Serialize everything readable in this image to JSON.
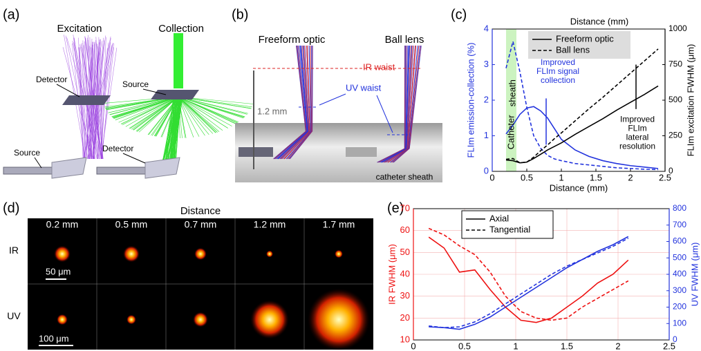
{
  "panel_labels": [
    "(a)",
    "(b)",
    "(c)",
    "(d)",
    "(e)"
  ],
  "panel_a": {
    "titles": [
      "Excitation",
      "Collection"
    ],
    "labels": [
      "Detector",
      "Source",
      "Source",
      "Detector"
    ]
  },
  "panel_b": {
    "titles": [
      "Freeform optic",
      "Ball lens"
    ],
    "labels": [
      "IR waist",
      "UV waist",
      "1.2 mm",
      "catheter sheath"
    ]
  },
  "panel_d": {
    "title": "Distance",
    "columns": [
      "0.2 mm",
      "0.5 mm",
      "0.7 mm",
      "1.2 mm",
      "1.7 mm"
    ],
    "rows": [
      "IR",
      "UV"
    ],
    "scale_bars": [
      "50 μm",
      "100 μm"
    ]
  },
  "chart_data": [
    {
      "type": "line",
      "top_label": "Distance (mm)",
      "xlabel": "Distance (mm)",
      "ylabel": "FLIm emission-collection (%)",
      "y2label": "FLIm excitation FWHM (μm)",
      "ycolor": "#2233dd",
      "y2color": "#000000",
      "x": [
        0.2,
        0.3,
        0.4,
        0.5,
        0.6,
        0.7,
        0.8,
        0.9,
        1.0,
        1.2,
        1.4,
        1.6,
        1.8,
        2.0,
        2.2,
        2.4
      ],
      "series": [
        {
          "color": "#2233dd",
          "linestyle": "solid",
          "values": [
            1.05,
            1.3,
            1.6,
            1.78,
            1.82,
            1.7,
            1.5,
            1.2,
            0.9,
            0.6,
            0.42,
            0.3,
            0.22,
            0.16,
            0.12,
            0.08
          ]
        },
        {
          "color": "#2233dd",
          "linestyle": "dashed",
          "values": [
            2.9,
            3.65,
            2.8,
            1.8,
            1.0,
            0.65,
            0.45,
            0.35,
            0.3,
            0.22,
            0.18,
            0.14,
            0.1,
            0.08,
            0.06,
            0.05
          ]
        },
        {
          "name": "Freeform optic",
          "color": "#000000",
          "linestyle": "solid",
          "axis": "y2",
          "values": [
            80,
            75,
            60,
            65,
            90,
            120,
            150,
            175,
            200,
            260,
            315,
            370,
            430,
            485,
            540,
            600
          ]
        },
        {
          "name": "Ball lens",
          "color": "#000000",
          "linestyle": "dashed",
          "axis": "y2",
          "values": [
            85,
            90,
            60,
            65,
            100,
            145,
            185,
            230,
            270,
            355,
            440,
            520,
            605,
            690,
            775,
            860
          ]
        }
      ],
      "xlim": [
        0,
        2.5
      ],
      "xticks": [
        0,
        0.5,
        1,
        1.5,
        2,
        2.5
      ],
      "ylim": [
        0,
        4
      ],
      "yticks": [
        0,
        1,
        2,
        3,
        4
      ],
      "y2lim": [
        0,
        1000
      ],
      "y2ticks": [
        0,
        250,
        500,
        750,
        1000
      ],
      "grid": false,
      "legend": "upper right",
      "legend_color": "#000000",
      "annotations": [
        "sheath",
        "Catheter",
        [
          "Improved",
          "FLIm signal",
          "collection"
        ],
        [
          "Improved",
          "FLIm",
          "lateral",
          "resolution"
        ]
      ]
    },
    {
      "type": "line",
      "xlabel": "",
      "ylabel": "IR FWHM (μm)",
      "y2label": "UV FWHM (μm)",
      "ycolor": "#ee1111",
      "y2color": "#2233dd",
      "x": [
        0.15,
        0.3,
        0.45,
        0.6,
        0.75,
        0.9,
        1.05,
        1.2,
        1.35,
        1.5,
        1.65,
        1.8,
        1.95,
        2.1
      ],
      "series": [
        {
          "name": "Axial",
          "color": "#ee1111",
          "linestyle": "solid",
          "values": [
            57,
            52,
            41,
            42,
            33,
            25,
            19,
            18,
            20,
            25,
            30,
            36,
            40,
            46.5
          ]
        },
        {
          "name": "Tangential",
          "color": "#ee1111",
          "linestyle": "dashed",
          "values": [
            61,
            58,
            53,
            49,
            41,
            30,
            23,
            20,
            19,
            20,
            25,
            29,
            33,
            37
          ]
        },
        {
          "color": "#2233dd",
          "linestyle": "solid",
          "axis": "y2",
          "values": [
            80,
            75,
            65,
            95,
            140,
            200,
            260,
            320,
            380,
            440,
            490,
            540,
            580,
            630
          ]
        },
        {
          "color": "#2233dd",
          "linestyle": "dashed",
          "axis": "y2",
          "values": [
            85,
            75,
            80,
            110,
            160,
            220,
            280,
            340,
            400,
            450,
            490,
            530,
            570,
            620
          ]
        }
      ],
      "xlim": [
        0,
        2.5
      ],
      "xticks": [
        0,
        0.5,
        1,
        1.5,
        2,
        2.5
      ],
      "ylim": [
        10,
        70
      ],
      "yticks": [
        10,
        20,
        30,
        40,
        50,
        60,
        70
      ],
      "y2lim": [
        0,
        800
      ],
      "y2ticks": [
        0,
        100,
        200,
        300,
        400,
        500,
        600,
        700,
        800
      ],
      "grid": true,
      "legend": "upper center",
      "legend_color": "#000000",
      "annotations": []
    }
  ]
}
